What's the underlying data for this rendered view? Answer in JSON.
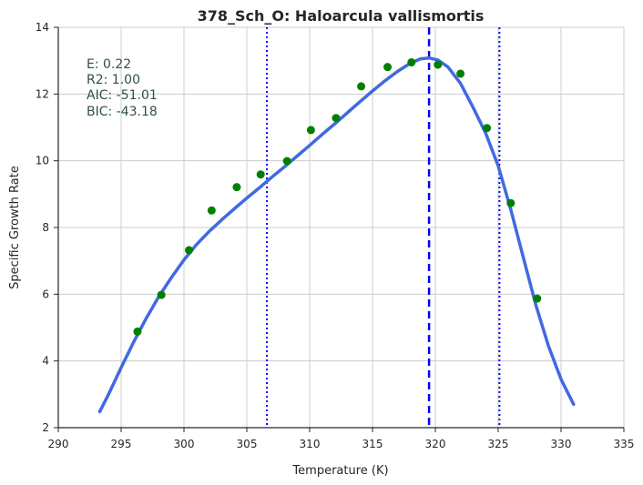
{
  "chart_data": {
    "type": "scatter",
    "title": "378_Sch_O: Haloarcula vallismortis",
    "xlabel": "Temperature (K)",
    "ylabel": "Specific Growth Rate",
    "xlim": [
      290,
      335
    ],
    "ylim": [
      2,
      14
    ],
    "xticks": [
      290,
      295,
      300,
      305,
      310,
      315,
      320,
      325,
      330,
      335
    ],
    "yticks": [
      2,
      4,
      6,
      8,
      10,
      12,
      14
    ],
    "grid": true,
    "colors": {
      "points": "#008000",
      "fit": "#4169e1",
      "vlines": "#0000ff",
      "grid": "#cccccc",
      "axis": "#262626",
      "stats": "#2f4f4f"
    },
    "points": {
      "x": [
        296.3,
        298.2,
        300.4,
        302.2,
        304.2,
        306.1,
        308.2,
        310.1,
        312.1,
        314.1,
        316.2,
        318.1,
        320.2,
        322.0,
        324.1,
        326.0,
        328.1
      ],
      "y": [
        4.88,
        5.98,
        7.32,
        8.51,
        9.21,
        9.59,
        9.99,
        10.92,
        11.28,
        12.23,
        12.81,
        12.95,
        12.88,
        12.61,
        10.98,
        8.73,
        5.87
      ]
    },
    "fit_curve": {
      "x": [
        293.3,
        294,
        295,
        296,
        297,
        298,
        299,
        300,
        301,
        302,
        303,
        304,
        305,
        306,
        307,
        308,
        309,
        310,
        311,
        312,
        313,
        314,
        315,
        316,
        317,
        318,
        318.8,
        319.5,
        320.2,
        321,
        322,
        323,
        324,
        325,
        326,
        327,
        328,
        329,
        330,
        331
      ],
      "y": [
        2.48,
        3.0,
        3.8,
        4.57,
        5.28,
        5.93,
        6.5,
        7.03,
        7.49,
        7.88,
        8.23,
        8.56,
        8.88,
        9.19,
        9.51,
        9.82,
        10.14,
        10.46,
        10.79,
        11.11,
        11.44,
        11.77,
        12.09,
        12.4,
        12.68,
        12.92,
        13.05,
        13.08,
        13.02,
        12.81,
        12.32,
        11.6,
        10.83,
        9.85,
        8.54,
        7.1,
        5.67,
        4.45,
        3.45,
        2.7
      ]
    },
    "vlines": [
      {
        "x": 306.6,
        "style": "dotted"
      },
      {
        "x": 319.5,
        "style": "dashed"
      },
      {
        "x": 325.1,
        "style": "dotted"
      }
    ],
    "stats": {
      "e": "E:  0.22",
      "r2": "R2:  1.00",
      "aic": "AIC: -51.01",
      "bic": "BIC: -43.18"
    }
  }
}
